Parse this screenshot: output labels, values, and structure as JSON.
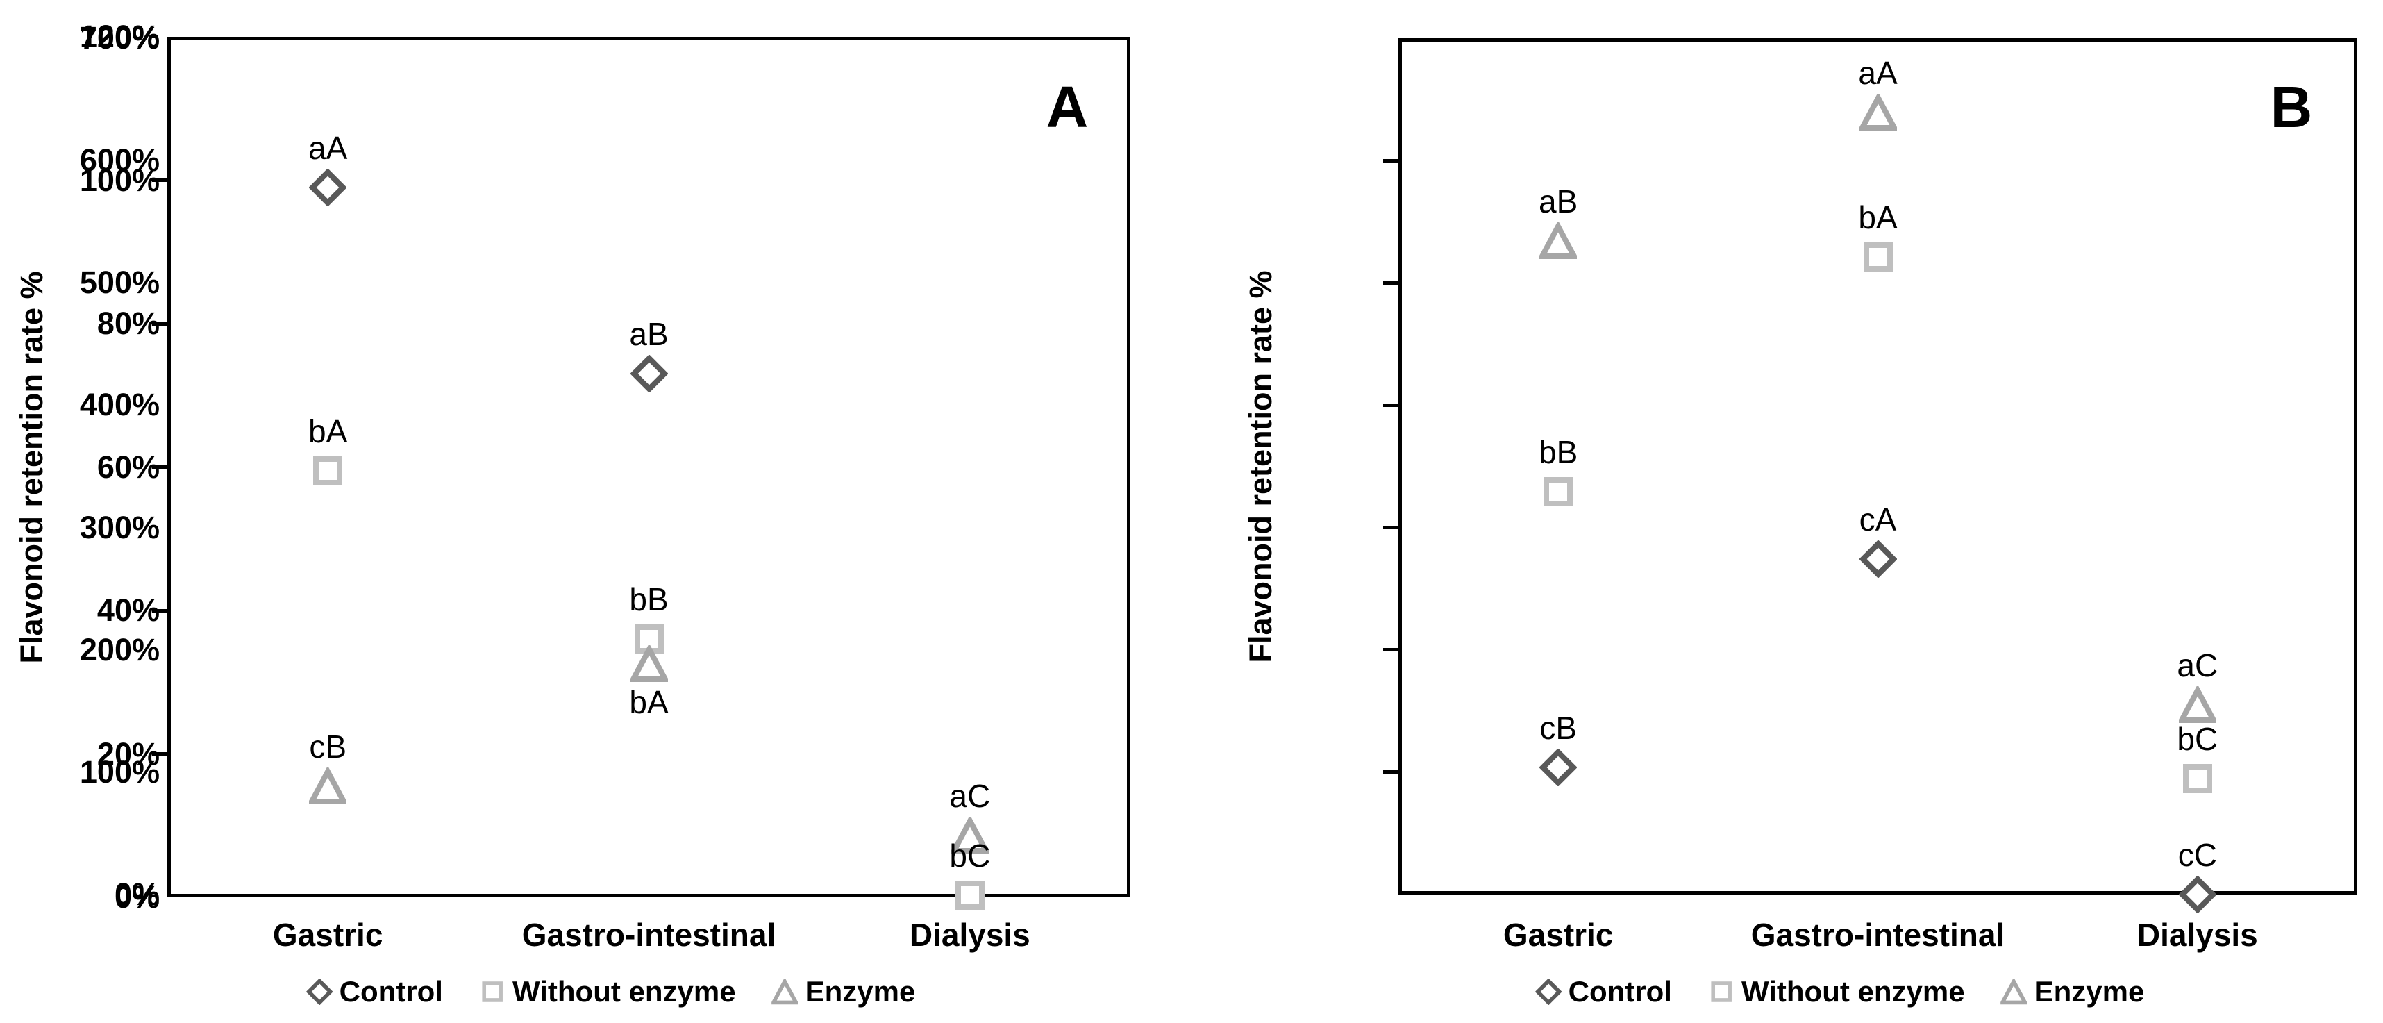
{
  "figure_title": "",
  "chart_data": [
    {
      "type": "scatter",
      "panel": "A",
      "title": "A",
      "ylabel": "Flavonoid retention rate %",
      "ylim": [
        0,
        120
      ],
      "ytick_step": 20,
      "ytick_unit": "%",
      "grid": false,
      "legend_position": "bottom-center",
      "categories": [
        "Gastric",
        "Gastro-intestinal",
        "Dialysis"
      ],
      "series": [
        {
          "name": "Control",
          "marker": "diamond",
          "color": "#595959",
          "values": [
            99,
            73,
            null
          ],
          "labels": [
            "aA",
            "aB",
            null
          ],
          "label_side": [
            "above",
            "above",
            null
          ]
        },
        {
          "name": "Without enzyme",
          "marker": "square",
          "color": "#bfbfbf",
          "values": [
            59.5,
            36,
            0.3
          ],
          "labels": [
            "bA",
            "bB",
            "bC"
          ],
          "label_side": [
            "above",
            "above",
            "above"
          ]
        },
        {
          "name": "Enzyme",
          "marker": "triangle",
          "color": "#a6a6a6",
          "values": [
            15.5,
            32.5,
            8.6
          ],
          "labels": [
            "cB",
            "bA",
            "aC"
          ],
          "label_side": [
            "above",
            "below",
            "above"
          ]
        }
      ]
    },
    {
      "type": "scatter",
      "panel": "B",
      "title": "B",
      "ylabel": "Flavonoid retention rate %",
      "ylim": [
        0,
        700
      ],
      "ytick_step": 100,
      "ytick_unit": "%",
      "grid": false,
      "legend_position": "bottom-center",
      "categories": [
        "Gastric",
        "Gastro-intestinal",
        "Dialysis"
      ],
      "series": [
        {
          "name": "Control",
          "marker": "diamond",
          "color": "#595959",
          "values": [
            104,
            274,
            0
          ],
          "labels": [
            "cB",
            "cA",
            "cC"
          ],
          "label_side": [
            "above",
            "above",
            "above"
          ]
        },
        {
          "name": "Without enzyme",
          "marker": "square",
          "color": "#bfbfbf",
          "values": [
            329,
            521,
            95
          ],
          "labels": [
            "bB",
            "bA",
            "bC"
          ],
          "label_side": [
            "above",
            "above",
            "above"
          ]
        },
        {
          "name": "Enzyme",
          "marker": "triangle",
          "color": "#a6a6a6",
          "values": [
            534,
            639,
            155
          ],
          "labels": [
            "aB",
            "aA",
            "aC"
          ],
          "label_side": [
            "above",
            "above",
            "above"
          ]
        }
      ]
    }
  ]
}
